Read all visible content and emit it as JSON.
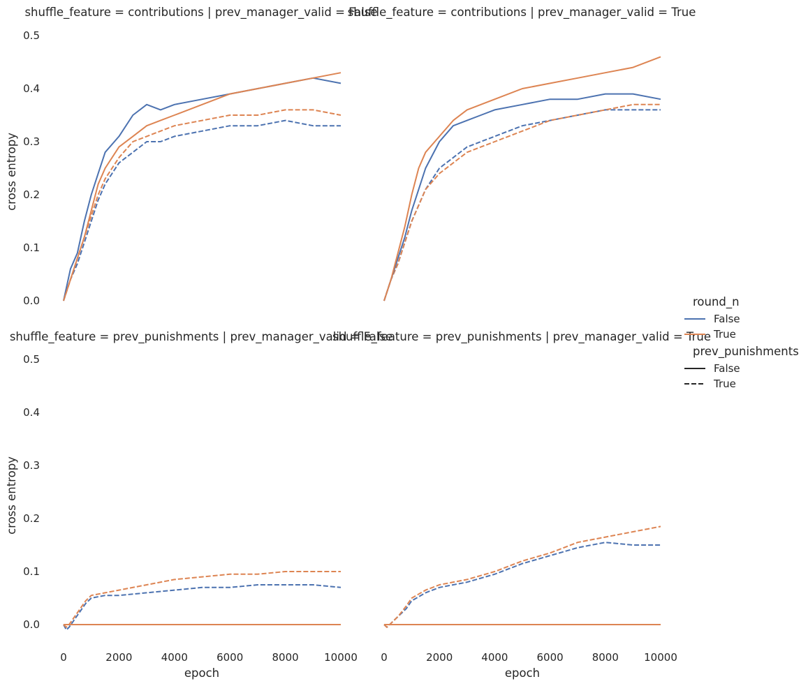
{
  "chart_data": {
    "type": "line",
    "ylabel": "cross entropy",
    "xlabel": "epoch",
    "xlim": [
      0,
      10000
    ],
    "ylim": [
      -0.03,
      0.51
    ],
    "yticks": [
      0.0,
      0.1,
      0.2,
      0.3,
      0.4,
      0.5
    ],
    "ytick_labels": [
      "0.0",
      "0.1",
      "0.2",
      "0.3",
      "0.4",
      "0.5"
    ],
    "xticks": [
      0,
      2000,
      4000,
      6000,
      8000,
      10000
    ],
    "xtick_labels": [
      "0",
      "2000",
      "4000",
      "6000",
      "8000",
      "10000"
    ],
    "grid": false,
    "colors": {
      "round_n_False": "#4c72b0",
      "round_n_True": "#dd8452",
      "text": "#262626"
    },
    "legend": {
      "placement": "center-right",
      "hue_title": "round_n",
      "hue_entries": [
        "False",
        "True"
      ],
      "style_title": "prev_punishments",
      "style_entries": [
        "False",
        "True"
      ]
    },
    "panels": [
      {
        "title": "shuffle_feature = contributions | prev_manager_valid = False",
        "series": [
          {
            "round_n": "False",
            "prev_punishments": "False",
            "x": [
              0,
              250,
              500,
              750,
              1000,
              1250,
              1500,
              2000,
              2500,
              3000,
              3500,
              4000,
              5000,
              6000,
              7000,
              8000,
              9000,
              10000
            ],
            "y": [
              0.0,
              0.06,
              0.09,
              0.15,
              0.2,
              0.24,
              0.28,
              0.31,
              0.35,
              0.37,
              0.36,
              0.37,
              0.38,
              0.39,
              0.4,
              0.41,
              0.42,
              0.41
            ]
          },
          {
            "round_n": "True",
            "prev_punishments": "False",
            "x": [
              0,
              250,
              500,
              750,
              1000,
              1250,
              1500,
              2000,
              2500,
              3000,
              3500,
              4000,
              5000,
              6000,
              7000,
              8000,
              9000,
              10000
            ],
            "y": [
              0.0,
              0.04,
              0.08,
              0.12,
              0.17,
              0.22,
              0.25,
              0.29,
              0.31,
              0.33,
              0.34,
              0.35,
              0.37,
              0.39,
              0.4,
              0.41,
              0.42,
              0.43
            ]
          },
          {
            "round_n": "False",
            "prev_punishments": "True",
            "x": [
              0,
              250,
              500,
              750,
              1000,
              1250,
              1500,
              2000,
              2500,
              3000,
              3500,
              4000,
              5000,
              6000,
              7000,
              8000,
              9000,
              10000
            ],
            "y": [
              0.0,
              0.04,
              0.07,
              0.11,
              0.15,
              0.19,
              0.22,
              0.26,
              0.28,
              0.3,
              0.3,
              0.31,
              0.32,
              0.33,
              0.33,
              0.34,
              0.33,
              0.33
            ]
          },
          {
            "round_n": "True",
            "prev_punishments": "True",
            "x": [
              0,
              250,
              500,
              750,
              1000,
              1250,
              1500,
              2000,
              2500,
              3000,
              3500,
              4000,
              5000,
              6000,
              7000,
              8000,
              9000,
              10000
            ],
            "y": [
              0.0,
              0.04,
              0.08,
              0.12,
              0.16,
              0.2,
              0.23,
              0.27,
              0.3,
              0.31,
              0.32,
              0.33,
              0.34,
              0.35,
              0.35,
              0.36,
              0.36,
              0.35
            ]
          }
        ]
      },
      {
        "title": "shuffle_feature = contributions | prev_manager_valid = True",
        "series": [
          {
            "round_n": "False",
            "prev_punishments": "False",
            "x": [
              0,
              250,
              500,
              750,
              1000,
              1250,
              1500,
              2000,
              2500,
              3000,
              3500,
              4000,
              5000,
              6000,
              7000,
              8000,
              9000,
              10000
            ],
            "y": [
              0.0,
              0.04,
              0.08,
              0.12,
              0.17,
              0.21,
              0.25,
              0.3,
              0.33,
              0.34,
              0.35,
              0.36,
              0.37,
              0.38,
              0.38,
              0.39,
              0.39,
              0.38
            ]
          },
          {
            "round_n": "True",
            "prev_punishments": "False",
            "x": [
              0,
              250,
              500,
              750,
              1000,
              1250,
              1500,
              2000,
              2500,
              3000,
              3500,
              4000,
              5000,
              6000,
              7000,
              8000,
              9000,
              10000
            ],
            "y": [
              0.0,
              0.04,
              0.09,
              0.14,
              0.2,
              0.25,
              0.28,
              0.31,
              0.34,
              0.36,
              0.37,
              0.38,
              0.4,
              0.41,
              0.42,
              0.43,
              0.44,
              0.46
            ]
          },
          {
            "round_n": "False",
            "prev_punishments": "True",
            "x": [
              0,
              250,
              500,
              750,
              1000,
              1250,
              1500,
              2000,
              2500,
              3000,
              3500,
              4000,
              5000,
              6000,
              7000,
              8000,
              9000,
              10000
            ],
            "y": [
              0.0,
              0.04,
              0.07,
              0.11,
              0.15,
              0.18,
              0.21,
              0.25,
              0.27,
              0.29,
              0.3,
              0.31,
              0.33,
              0.34,
              0.35,
              0.36,
              0.36,
              0.36
            ]
          },
          {
            "round_n": "True",
            "prev_punishments": "True",
            "x": [
              0,
              250,
              500,
              750,
              1000,
              1250,
              1500,
              2000,
              2500,
              3000,
              3500,
              4000,
              5000,
              6000,
              7000,
              8000,
              9000,
              10000
            ],
            "y": [
              0.0,
              0.04,
              0.07,
              0.11,
              0.15,
              0.18,
              0.21,
              0.24,
              0.26,
              0.28,
              0.29,
              0.3,
              0.32,
              0.34,
              0.35,
              0.36,
              0.37,
              0.37
            ]
          }
        ]
      },
      {
        "title": "shuffle_feature = prev_punishments | prev_manager_valid = False",
        "series": [
          {
            "round_n": "False",
            "prev_punishments": "False",
            "x": [
              0,
              10000
            ],
            "y": [
              0.0,
              0.0
            ]
          },
          {
            "round_n": "True",
            "prev_punishments": "False",
            "x": [
              0,
              10000
            ],
            "y": [
              0.0,
              0.0
            ]
          },
          {
            "round_n": "False",
            "prev_punishments": "True",
            "x": [
              0,
              100,
              200,
              400,
              600,
              800,
              1000,
              1500,
              2000,
              3000,
              4000,
              5000,
              6000,
              7000,
              8000,
              9000,
              10000
            ],
            "y": [
              0.0,
              -0.01,
              -0.005,
              0.01,
              0.025,
              0.04,
              0.05,
              0.055,
              0.055,
              0.06,
              0.065,
              0.07,
              0.07,
              0.075,
              0.075,
              0.075,
              0.07
            ]
          },
          {
            "round_n": "True",
            "prev_punishments": "True",
            "x": [
              0,
              100,
              200,
              400,
              600,
              800,
              1000,
              1500,
              2000,
              3000,
              4000,
              5000,
              6000,
              7000,
              8000,
              9000,
              10000
            ],
            "y": [
              0.0,
              -0.005,
              0.0,
              0.015,
              0.03,
              0.045,
              0.055,
              0.06,
              0.065,
              0.075,
              0.085,
              0.09,
              0.095,
              0.095,
              0.1,
              0.1,
              0.1
            ]
          }
        ]
      },
      {
        "title": "shuffle_feature = prev_punishments | prev_manager_valid = True",
        "series": [
          {
            "round_n": "False",
            "prev_punishments": "False",
            "x": [
              0,
              10000
            ],
            "y": [
              0.0,
              0.0
            ]
          },
          {
            "round_n": "True",
            "prev_punishments": "False",
            "x": [
              0,
              10000
            ],
            "y": [
              0.0,
              0.0
            ]
          },
          {
            "round_n": "False",
            "prev_punishments": "True",
            "x": [
              0,
              100,
              300,
              500,
              800,
              1000,
              1500,
              2000,
              3000,
              4000,
              5000,
              6000,
              7000,
              8000,
              9000,
              10000
            ],
            "y": [
              0.0,
              -0.005,
              0.005,
              0.015,
              0.03,
              0.045,
              0.06,
              0.07,
              0.08,
              0.095,
              0.115,
              0.13,
              0.145,
              0.155,
              0.15,
              0.15
            ]
          },
          {
            "round_n": "True",
            "prev_punishments": "True",
            "x": [
              0,
              100,
              300,
              500,
              800,
              1000,
              1500,
              2000,
              3000,
              4000,
              5000,
              6000,
              7000,
              8000,
              9000,
              10000
            ],
            "y": [
              0.0,
              -0.005,
              0.005,
              0.015,
              0.035,
              0.05,
              0.065,
              0.075,
              0.085,
              0.1,
              0.12,
              0.135,
              0.155,
              0.165,
              0.175,
              0.185
            ]
          }
        ]
      }
    ]
  }
}
